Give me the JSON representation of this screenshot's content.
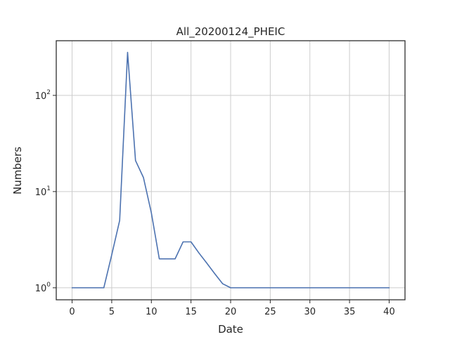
{
  "chart_data": {
    "type": "line",
    "title": "All_20200124_PHEIC",
    "xlabel": "Date",
    "ylabel": "Numbers",
    "yscale": "log",
    "xlim": [
      -2,
      42
    ],
    "ylim": [
      0.75,
      370
    ],
    "xticks": [
      0,
      5,
      10,
      15,
      20,
      25,
      30,
      35,
      40
    ],
    "yticks": [
      {
        "value": 1,
        "base": "10",
        "exp": "0"
      },
      {
        "value": 10,
        "base": "10",
        "exp": "1"
      },
      {
        "value": 100,
        "base": "10",
        "exp": "2"
      }
    ],
    "grid": true,
    "line_color": "#4c72b0",
    "series": [
      {
        "x": [
          0,
          1,
          2,
          3,
          4,
          5,
          6,
          7,
          8,
          9,
          10,
          11,
          12,
          13,
          14,
          15,
          16,
          17,
          18,
          19,
          20,
          21,
          22,
          23,
          24,
          25,
          26,
          27,
          28,
          29,
          30,
          31,
          32,
          33,
          34,
          35,
          36,
          37,
          38,
          39,
          40
        ],
        "values": [
          1,
          1,
          1,
          1,
          1,
          2.2,
          5,
          280,
          21,
          14,
          6,
          2,
          2,
          2,
          3,
          3,
          2.3,
          1.8,
          1.4,
          1.1,
          1,
          1,
          1,
          1,
          1,
          1,
          1,
          1,
          1,
          1,
          1,
          1,
          1,
          1,
          1,
          1,
          1,
          1,
          1,
          1,
          1
        ]
      }
    ]
  }
}
